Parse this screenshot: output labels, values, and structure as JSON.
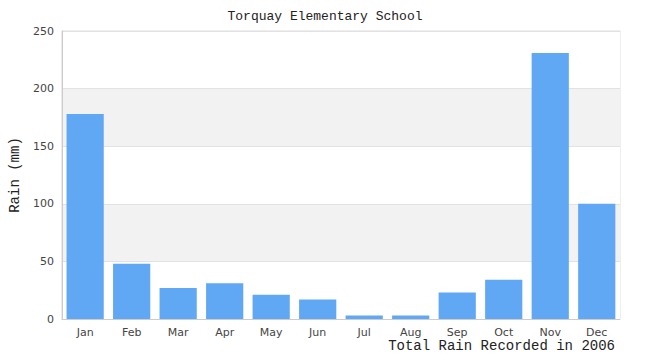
{
  "chart_data": {
    "type": "bar",
    "title": "Torquay Elementary School",
    "x_label": "Total Rain Recorded in 2006",
    "y_label": "Rain (mm)",
    "categories": [
      "Jan",
      "Feb",
      "Mar",
      "Apr",
      "May",
      "Jun",
      "Jul",
      "Aug",
      "Sep",
      "Oct",
      "Nov",
      "Dec"
    ],
    "values": [
      178,
      48,
      27,
      31,
      21,
      17,
      3,
      3,
      23,
      34,
      231,
      100
    ],
    "color": "#60a8f4",
    "ylim": [
      0,
      250
    ],
    "yticks": [
      0,
      50,
      100,
      150,
      200,
      250
    ],
    "grid": true
  }
}
